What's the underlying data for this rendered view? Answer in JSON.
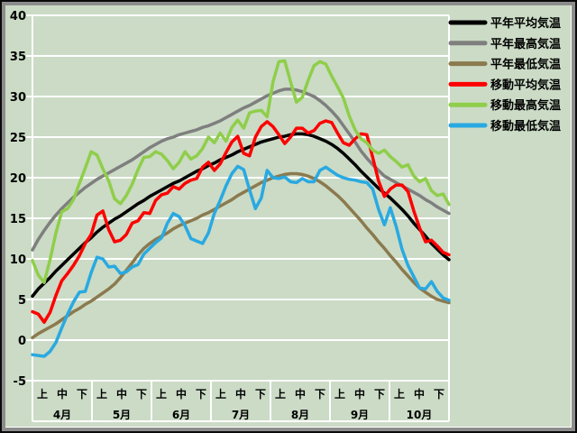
{
  "window": {
    "background": "#CBDBC6",
    "frame_outer": "#0A0A0A",
    "frame_bevel": "#8C8C8C",
    "frame_highlight": "#FFFFFF",
    "gridline_color": "#FFFFFF",
    "text_color": "#000000"
  },
  "chart_data": {
    "type": "line",
    "title": "",
    "xlabel": "",
    "ylabel": "",
    "grid": true,
    "legend_position": "right",
    "y_axis": {
      "min": -5,
      "max": 40,
      "step": 5
    },
    "x_axis": {
      "months": [
        "4月",
        "5月",
        "6月",
        "7月",
        "8月",
        "9月",
        "10月"
      ],
      "decade_labels": [
        "上",
        "中",
        "下"
      ]
    },
    "series": [
      {
        "name": "平年平均気温",
        "color": "#000000",
        "width": 3.5,
        "values": [
          5.4,
          6.3,
          7.0,
          7.7,
          8.5,
          9.2,
          9.9,
          10.6,
          11.3,
          12.0,
          12.6,
          13.3,
          13.9,
          14.4,
          14.9,
          15.3,
          15.8,
          16.3,
          16.8,
          17.2,
          17.7,
          18.1,
          18.5,
          18.9,
          19.3,
          19.6,
          20.0,
          20.4,
          20.8,
          21.1,
          21.5,
          21.8,
          22.2,
          22.5,
          22.8,
          23.2,
          23.5,
          23.8,
          24.1,
          24.4,
          24.6,
          24.8,
          25.0,
          25.1,
          25.3,
          25.4,
          25.4,
          25.3,
          25.1,
          24.8,
          24.5,
          24.1,
          23.6,
          23.0,
          22.3,
          21.6,
          20.8,
          20.1,
          19.4,
          18.7,
          18.1,
          17.5,
          16.8,
          16.1,
          15.3,
          14.4,
          13.6,
          12.8,
          11.9,
          11.2,
          10.5,
          9.9
        ]
      },
      {
        "name": "平年最高気温",
        "color": "#7F7F7F",
        "width": 3.5,
        "values": [
          11.1,
          12.4,
          13.5,
          14.5,
          15.4,
          16.2,
          16.9,
          17.6,
          18.2,
          18.8,
          19.3,
          19.8,
          20.2,
          20.6,
          21.0,
          21.4,
          21.8,
          22.2,
          22.7,
          23.2,
          23.7,
          24.1,
          24.5,
          24.8,
          25.0,
          25.3,
          25.5,
          25.7,
          25.9,
          26.2,
          26.4,
          26.7,
          27.0,
          27.4,
          27.8,
          28.2,
          28.6,
          28.9,
          29.3,
          29.7,
          30.1,
          30.4,
          30.7,
          30.9,
          30.9,
          30.8,
          30.6,
          30.3,
          30.0,
          29.5,
          28.9,
          28.2,
          27.4,
          26.4,
          25.4,
          24.4,
          23.3,
          22.4,
          21.6,
          20.9,
          20.2,
          19.8,
          19.4,
          19.0,
          18.6,
          18.2,
          17.8,
          17.3,
          16.9,
          16.4,
          16.0,
          15.6
        ]
      },
      {
        "name": "平年最低気温",
        "color": "#8B7A4E",
        "width": 3.5,
        "values": [
          0.3,
          0.8,
          1.2,
          1.6,
          2.0,
          2.5,
          3.0,
          3.5,
          3.9,
          4.4,
          4.8,
          5.3,
          5.8,
          6.3,
          6.9,
          7.7,
          8.6,
          9.5,
          10.5,
          11.3,
          11.9,
          12.4,
          12.8,
          13.2,
          13.7,
          14.1,
          14.4,
          14.7,
          15.0,
          15.4,
          15.7,
          16.1,
          16.5,
          16.9,
          17.3,
          17.8,
          18.2,
          18.6,
          19.0,
          19.4,
          19.7,
          20.0,
          20.2,
          20.4,
          20.5,
          20.5,
          20.4,
          20.2,
          19.9,
          19.5,
          19.0,
          18.4,
          17.8,
          17.1,
          16.3,
          15.5,
          14.7,
          13.8,
          13.0,
          12.1,
          11.3,
          10.4,
          9.6,
          8.7,
          7.9,
          7.1,
          6.4,
          5.9,
          5.4,
          5.0,
          4.8,
          4.6
        ]
      },
      {
        "name": "移動平均気温",
        "color": "#FF0000",
        "width": 3.5,
        "values": [
          3.5,
          3.2,
          2.2,
          3.4,
          5.5,
          7.3,
          8.2,
          9.2,
          10.4,
          11.9,
          13.0,
          15.4,
          15.9,
          13.6,
          12.1,
          12.3,
          13.0,
          14.4,
          14.7,
          15.7,
          15.6,
          17.2,
          17.9,
          18.1,
          18.9,
          18.6,
          19.3,
          19.7,
          19.9,
          21.3,
          21.9,
          20.9,
          21.7,
          23.1,
          24.4,
          25.1,
          23.0,
          22.7,
          25.0,
          26.3,
          26.9,
          26.3,
          25.3,
          24.2,
          25.0,
          26.1,
          26.1,
          25.5,
          25.8,
          26.7,
          27.0,
          26.8,
          25.5,
          24.3,
          24.0,
          24.8,
          25.4,
          25.3,
          22.5,
          19.6,
          17.7,
          18.6,
          19.1,
          19.1,
          18.3,
          15.9,
          13.8,
          12.1,
          12.3,
          11.6,
          10.8,
          10.5
        ]
      },
      {
        "name": "移動最高気温",
        "color": "#8FCE4A",
        "width": 3.5,
        "values": [
          9.8,
          8.0,
          7.1,
          9.9,
          13.2,
          15.8,
          16.2,
          17.3,
          19.3,
          21.2,
          23.2,
          22.8,
          21.1,
          19.6,
          17.4,
          16.8,
          17.8,
          19.2,
          21.0,
          22.5,
          22.6,
          23.2,
          22.9,
          22.1,
          21.1,
          21.9,
          23.2,
          22.3,
          22.7,
          23.6,
          25.0,
          24.3,
          25.5,
          24.5,
          26.2,
          27.1,
          26.1,
          28.0,
          28.2,
          28.3,
          27.5,
          31.8,
          34.3,
          34.4,
          31.8,
          29.3,
          29.9,
          32.0,
          33.8,
          34.3,
          34.0,
          32.5,
          31.2,
          29.8,
          27.6,
          25.9,
          24.8,
          24.3,
          23.4,
          23.0,
          23.4,
          22.6,
          22.0,
          21.3,
          21.6,
          20.2,
          19.5,
          19.9,
          18.4,
          17.8,
          18.0,
          16.7
        ]
      },
      {
        "name": "移動最低気温",
        "color": "#29A9E1",
        "width": 3.5,
        "values": [
          -1.8,
          -1.9,
          -2.0,
          -1.4,
          -0.3,
          1.5,
          3.2,
          4.7,
          5.9,
          6.0,
          8.3,
          10.2,
          10.0,
          9.0,
          9.1,
          8.2,
          8.4,
          9.0,
          9.3,
          10.6,
          11.3,
          12.0,
          12.6,
          14.4,
          15.6,
          15.2,
          14.1,
          12.5,
          12.2,
          11.9,
          13.2,
          15.6,
          17.2,
          19.0,
          20.5,
          21.4,
          21.0,
          18.5,
          16.2,
          17.5,
          20.9,
          20.0,
          19.9,
          20.1,
          19.5,
          19.4,
          19.9,
          19.5,
          19.5,
          20.9,
          21.3,
          20.8,
          20.3,
          20.0,
          19.8,
          19.7,
          19.5,
          19.4,
          18.6,
          16.1,
          14.2,
          16.3,
          14.0,
          11.2,
          9.2,
          7.8,
          6.4,
          6.3,
          7.2,
          6.0,
          5.2,
          4.9
        ]
      }
    ]
  }
}
